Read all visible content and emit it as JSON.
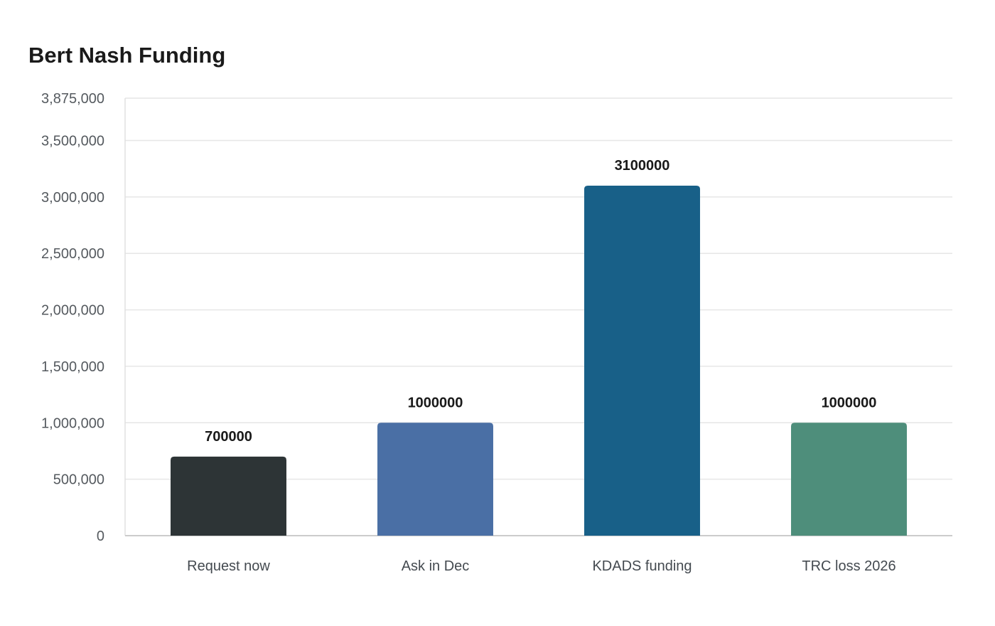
{
  "chart_data": {
    "type": "bar",
    "title": "Bert Nash Funding",
    "xlabel": "",
    "ylabel": "",
    "categories": [
      "Request now",
      "Ask in Dec",
      "KDADS funding",
      "TRC loss 2026"
    ],
    "values": [
      700000,
      1000000,
      3100000,
      1000000
    ],
    "data_labels": [
      "700000",
      "1000000",
      "3100000",
      "1000000"
    ],
    "colors": [
      "#2d3436",
      "#4a6fa5",
      "#186088",
      "#4e8e7b"
    ],
    "ylim": [
      0,
      3875000
    ],
    "yticks": [
      0,
      500000,
      1000000,
      1500000,
      2000000,
      2500000,
      3000000,
      3500000,
      3875000
    ],
    "ytick_labels": [
      "0",
      "500,000",
      "1,000,000",
      "1,500,000",
      "2,000,000",
      "2,500,000",
      "3,000,000",
      "3,500,000",
      "3,875,000"
    ],
    "grid": true,
    "legend": "none"
  }
}
